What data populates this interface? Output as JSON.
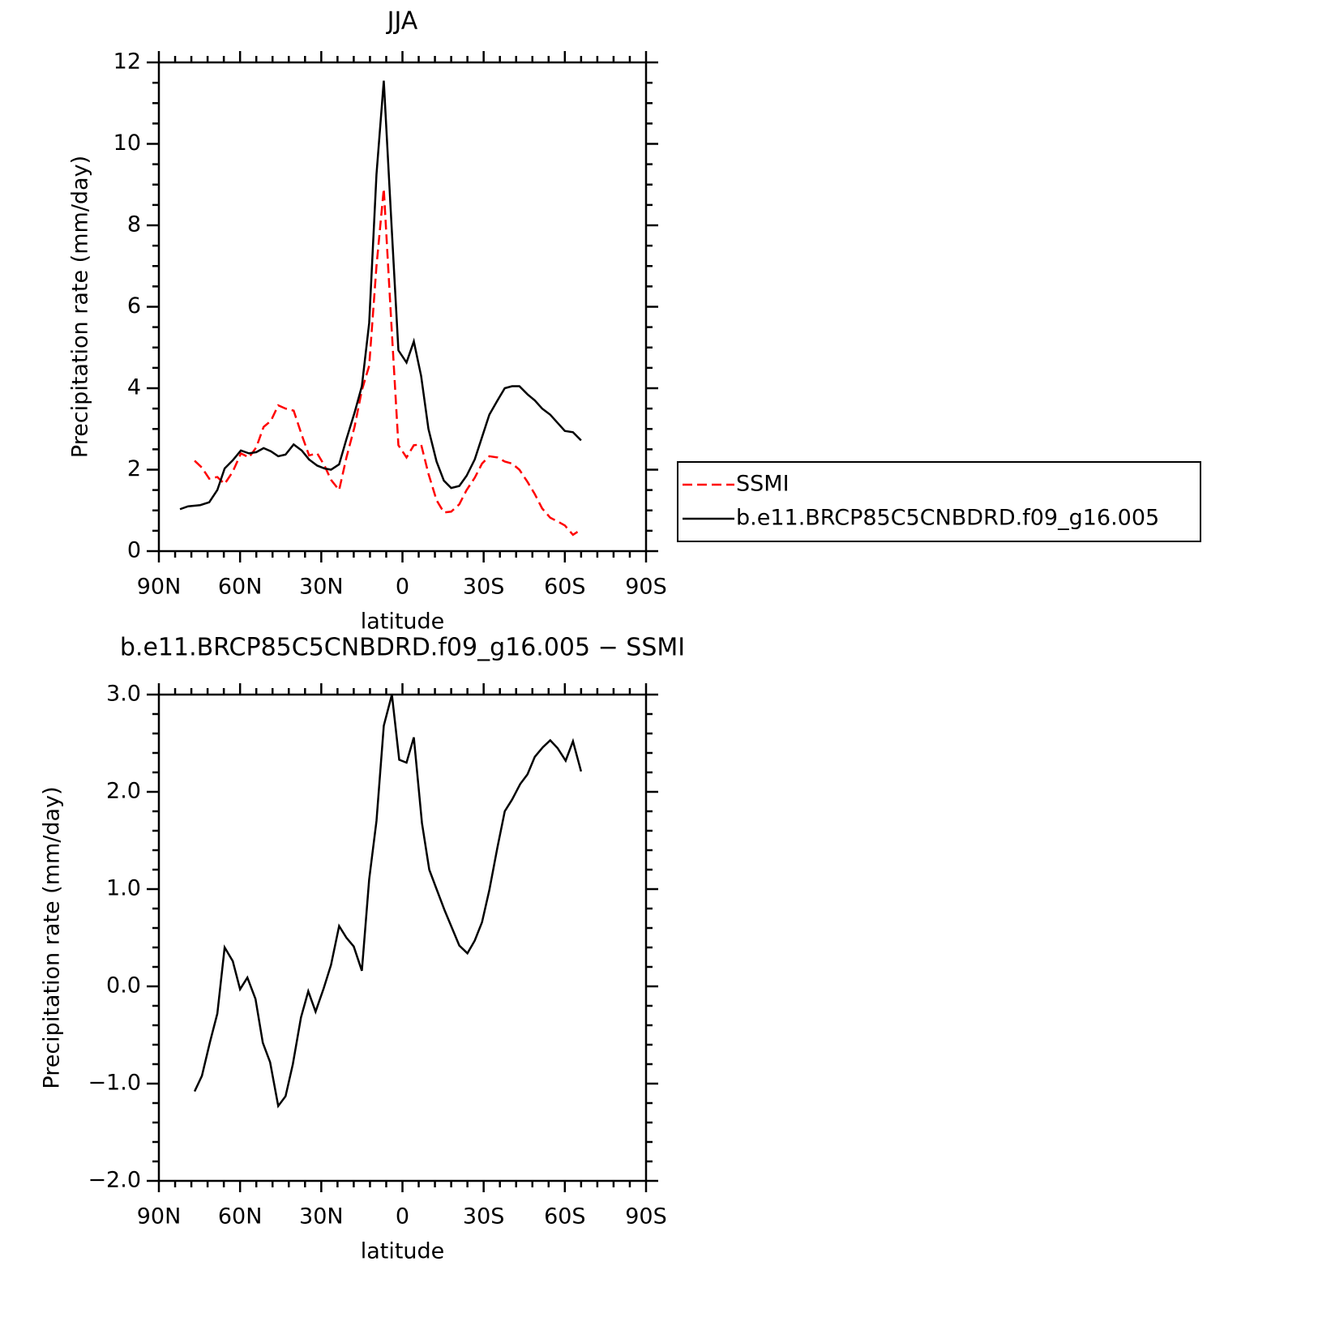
{
  "chart_data": [
    {
      "type": "line",
      "title": "JJA",
      "xlabel": "latitude",
      "ylabel": "Precipitation rate (mm/day)",
      "xlim": [
        90,
        -90
      ],
      "xticks": [
        {
          "value": 90,
          "label": "90N"
        },
        {
          "value": 60,
          "label": "60N"
        },
        {
          "value": 30,
          "label": "30N"
        },
        0,
        {
          "value": -30,
          "label": "30S"
        },
        {
          "value": -60,
          "label": "60S"
        },
        {
          "value": -90,
          "label": "90S"
        }
      ],
      "xminorticks": [
        84,
        78,
        72,
        66,
        54,
        48,
        42,
        36,
        24,
        18,
        12,
        6,
        -6,
        -12,
        -18,
        -24,
        -36,
        -42,
        -48,
        -54,
        -66,
        -72,
        -78,
        -84
      ],
      "ylim": [
        0,
        12
      ],
      "yticks": [
        0,
        2,
        4,
        6,
        8,
        10,
        12
      ],
      "yminorticks": [
        0.5,
        1,
        1.5,
        2.5,
        3,
        3.5,
        4.5,
        5,
        5.5,
        6.5,
        7,
        7.5,
        8.5,
        9,
        9.5,
        10.5,
        11,
        11.5
      ],
      "legend": "right",
      "series": [
        {
          "name": "SSMI",
          "color": "#ff0000",
          "linestyle": "dashed",
          "x": [
            76.8,
            74.1,
            71.4,
            68.4,
            65.7,
            62.7,
            59.7,
            56.7,
            54,
            51.3,
            48.6,
            45.9,
            43.2,
            40.2,
            37.2,
            34.5,
            31.5,
            28.8,
            26.4,
            23.4,
            20.7,
            17.7,
            15,
            12.3,
            9.6,
            6.9,
            4.2,
            1.5,
            -1.5,
            -4.2,
            -6.9,
            -9.6,
            -12.6,
            -15.3,
            -18,
            -21,
            -23.7,
            -26.7,
            -29.4,
            -32.1,
            -35.1,
            -37.8,
            -40.5,
            -43.2,
            -46.2,
            -48.9,
            -51.6,
            -54.6,
            -57.3,
            -60,
            -63,
            -66
          ],
          "values": [
            2.22,
            2.05,
            1.78,
            1.82,
            1.65,
            1.95,
            2.4,
            2.3,
            2.55,
            3.05,
            3.2,
            3.58,
            3.5,
            3.45,
            2.85,
            2.35,
            2.4,
            2.1,
            1.75,
            1.5,
            2.3,
            3.05,
            3.95,
            4.55,
            7.0,
            8.9,
            5.7,
            2.6,
            2.3,
            2.6,
            2.62,
            1.9,
            1.25,
            0.95,
            0.97,
            1.15,
            1.5,
            1.8,
            2.15,
            2.33,
            2.3,
            2.2,
            2.15,
            2.0,
            1.7,
            1.4,
            1.05,
            0.82,
            0.73,
            0.63,
            0.4,
            0.53
          ]
        },
        {
          "name": "b.e11.BRCP85C5CNBDRD.f09_g16.005",
          "color": "#000000",
          "linestyle": "solid",
          "x": [
            82.2,
            79.2,
            74.7,
            71.4,
            68.4,
            65.7,
            62.7,
            59.7,
            56.7,
            54,
            51.3,
            48.6,
            45.9,
            43.2,
            40.2,
            37.2,
            34.5,
            31.5,
            28.8,
            26.4,
            23.4,
            20.7,
            17.7,
            15,
            12.3,
            9.6,
            6.9,
            4.2,
            1.5,
            -1.5,
            -4.2,
            -6.9,
            -9.6,
            -12.6,
            -15.3,
            -18,
            -21,
            -23.7,
            -26.7,
            -29.4,
            -32.1,
            -35.1,
            -37.8,
            -40.5,
            -43.2,
            -46.2,
            -48.9,
            -51.6,
            -54.6,
            -57.3,
            -60,
            -63,
            -66
          ],
          "values": [
            1.03,
            1.1,
            1.13,
            1.2,
            1.5,
            2.03,
            2.23,
            2.47,
            2.4,
            2.43,
            2.53,
            2.45,
            2.33,
            2.37,
            2.62,
            2.47,
            2.25,
            2.1,
            2.03,
            2.0,
            2.13,
            2.75,
            3.4,
            4.05,
            5.6,
            9.25,
            11.55,
            8.2,
            4.93,
            4.63,
            5.15,
            4.3,
            3.0,
            2.2,
            1.73,
            1.55,
            1.6,
            1.85,
            2.25,
            2.8,
            3.35,
            3.7,
            4.0,
            4.05,
            4.05,
            3.85,
            3.7,
            3.5,
            3.35,
            3.15,
            2.95,
            2.92,
            2.72
          ]
        }
      ]
    },
    {
      "type": "line",
      "title": "b.e11.BRCP85C5CNBDRD.f09_g16.005 − SSMI",
      "xlabel": "latitude",
      "ylabel": "Precipitation rate (mm/day)",
      "xlim": [
        90,
        -90
      ],
      "xticks": [
        {
          "value": 90,
          "label": "90N"
        },
        {
          "value": 60,
          "label": "60N"
        },
        {
          "value": 30,
          "label": "30N"
        },
        0,
        {
          "value": -30,
          "label": "30S"
        },
        {
          "value": -60,
          "label": "60S"
        },
        {
          "value": -90,
          "label": "90S"
        }
      ],
      "xminorticks": [
        84,
        78,
        72,
        66,
        54,
        48,
        42,
        36,
        24,
        18,
        12,
        6,
        -6,
        -12,
        -18,
        -24,
        -36,
        -42,
        -48,
        -54,
        -66,
        -72,
        -78,
        -84
      ],
      "ylim": [
        -2,
        3
      ],
      "yticks": [
        {
          "value": -2,
          "label": "−2.0"
        },
        {
          "value": -1,
          "label": "−1.0"
        },
        {
          "value": 0,
          "label": "0.0"
        },
        {
          "value": 1,
          "label": "1.0"
        },
        {
          "value": 2,
          "label": "2.0"
        },
        {
          "value": 3,
          "label": "3.0"
        }
      ],
      "yminorticks": [
        -1.8,
        -1.6,
        -1.4,
        -1.2,
        -0.8,
        -0.6,
        -0.4,
        -0.2,
        0.2,
        0.4,
        0.6,
        0.8,
        1.2,
        1.4,
        1.6,
        1.8,
        2.2,
        2.4,
        2.6,
        2.8
      ],
      "series": [
        {
          "color": "#000000",
          "linestyle": "solid",
          "x": [
            76.8,
            74.1,
            71.1,
            68.4,
            65.7,
            62.7,
            60,
            57.3,
            54.3,
            51.6,
            48.9,
            45.9,
            43.2,
            40.5,
            37.5,
            34.8,
            32.1,
            29.1,
            26.4,
            23.4,
            20.7,
            18,
            15,
            12.3,
            9.6,
            6.9,
            3.9,
            1.2,
            -1.5,
            -4.2,
            -7.2,
            -9.9,
            -12.6,
            -15.6,
            -18.3,
            -21,
            -24,
            -26.7,
            -29.4,
            -32.1,
            -35.1,
            -37.8,
            -40.5,
            -43.5,
            -46.2,
            -48.9,
            -51.9,
            -54.6,
            -57.3,
            -60.3,
            -63,
            -66
          ],
          "values": [
            -1.08,
            -0.92,
            -0.57,
            -0.28,
            0.4,
            0.26,
            -0.03,
            0.09,
            -0.13,
            -0.58,
            -0.78,
            -1.23,
            -1.13,
            -0.8,
            -0.32,
            -0.05,
            -0.26,
            -0.02,
            0.22,
            0.62,
            0.5,
            0.41,
            0.16,
            1.1,
            1.7,
            2.68,
            3.0,
            2.33,
            2.3,
            2.56,
            1.68,
            1.2,
            1.0,
            0.78,
            0.6,
            0.42,
            0.34,
            0.47,
            0.66,
            0.99,
            1.43,
            1.8,
            1.92,
            2.08,
            2.18,
            2.36,
            2.46,
            2.53,
            2.45,
            2.32,
            2.52,
            2.21
          ]
        }
      ]
    }
  ]
}
